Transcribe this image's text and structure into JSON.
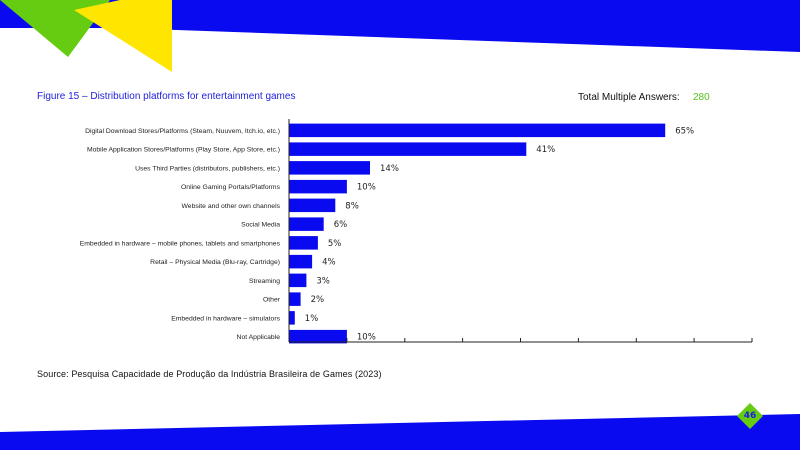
{
  "page": {
    "figure_title": "Figure 15 – Distribution platforms for entertainment games",
    "total_label": "Total Multiple Answers:",
    "total_value": "280",
    "source": "Source: Pesquisa Capacidade de Produção da Indústria Brasileira de Games (2023)",
    "page_number": "46",
    "colors": {
      "bar": "#0a0af0",
      "accent_blue": "#0a0af0",
      "accent_green": "#66cc11",
      "accent_yellow": "#ffe600",
      "title_blue": "#1e1ed9",
      "total_green": "#56c21a"
    }
  },
  "chart_data": {
    "type": "bar",
    "orientation": "horizontal",
    "categories": [
      "Digital Download Stores/Platforms (Steam, Nuuvem, Itch.io, etc.)",
      "Mobile Application Stores/Platforms (Play Store, App Store, etc.)",
      "Uses Third Parties (distributors, publishers, etc.)",
      "Online Gaming Portals/Platforms",
      "Website and other own channels",
      "Social Media",
      "Embedded in hardware – mobile phones, tablets and smartphones",
      "Retail – Physical Media (Blu-ray, Cartridge)",
      "Streaming",
      "Other",
      "Embedded in hardware – simulators",
      "Not Applicable"
    ],
    "values": [
      65,
      41,
      14,
      10,
      8,
      6,
      5,
      4,
      3,
      2,
      1,
      10
    ],
    "value_labels": [
      "65%",
      "41%",
      "14%",
      "10%",
      "8%",
      "6%",
      "5%",
      "4%",
      "3%",
      "2%",
      "1%",
      "10%"
    ],
    "xlim": [
      0,
      80
    ],
    "x_tick_count": 8,
    "grid": false,
    "legend": "none"
  }
}
